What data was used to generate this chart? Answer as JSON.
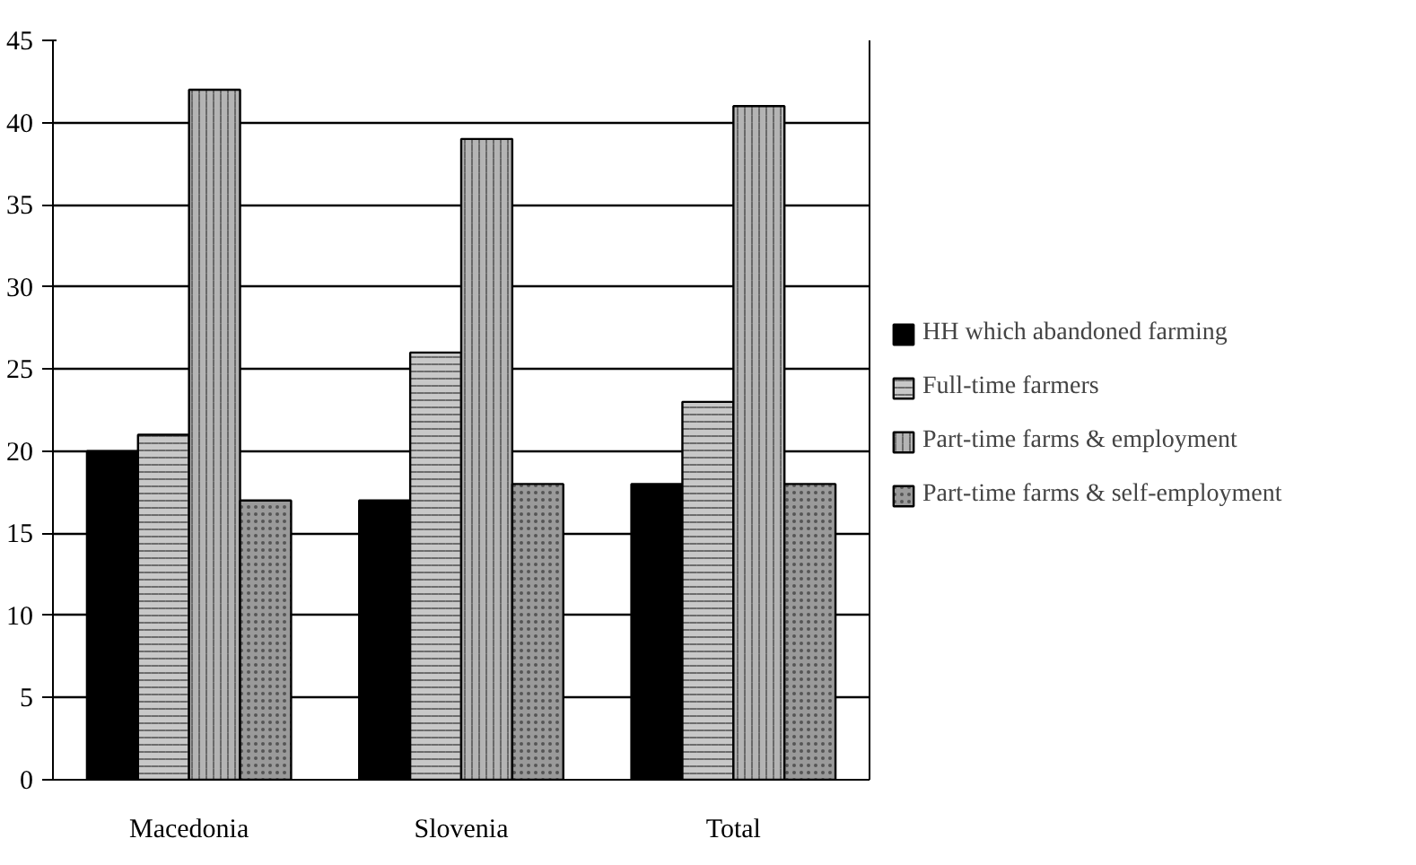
{
  "chart_data": {
    "type": "bar",
    "categories": [
      "Macedonia",
      "Slovenia",
      "Total"
    ],
    "series": [
      {
        "name": "HH which abandoned farming",
        "color": "#000000",
        "values": [
          20,
          17,
          18
        ]
      },
      {
        "name": "Full-time farmers",
        "color": "#c8c8c8",
        "values": [
          21,
          26,
          23
        ]
      },
      {
        "name": "Part-time farms & employment",
        "color": "#b4b4b4",
        "values": [
          42,
          39,
          41
        ]
      },
      {
        "name": "Part-time farms & self-employment",
        "color": "#9a9a9a",
        "values": [
          17,
          18,
          18
        ]
      }
    ],
    "ylim": [
      0,
      45
    ],
    "yticks": [
      0,
      5,
      10,
      15,
      20,
      25,
      30,
      35,
      40,
      45
    ],
    "grid": "y",
    "legend": "right"
  }
}
